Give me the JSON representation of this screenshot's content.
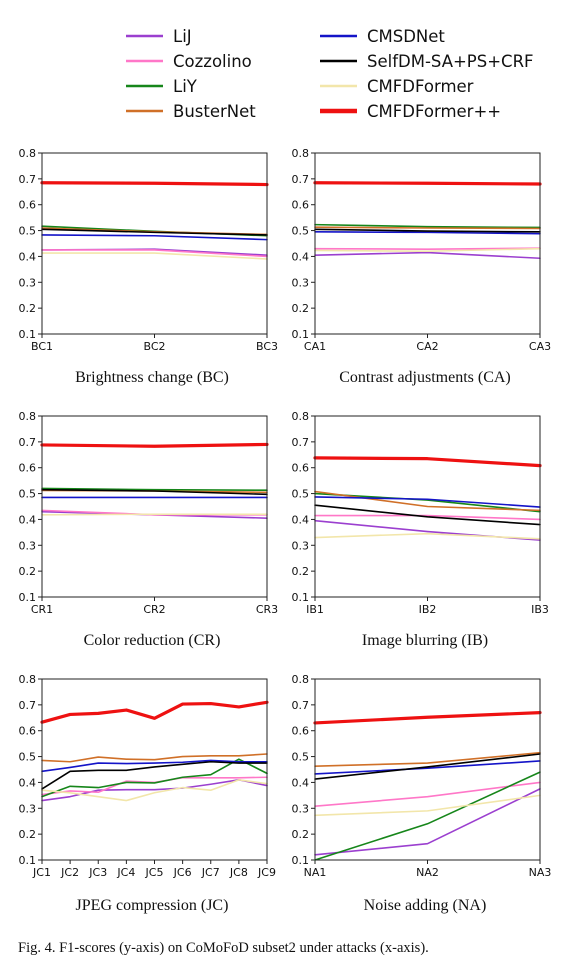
{
  "legend": [
    {
      "name": "LiJ",
      "color": "#9b3fcf",
      "width": 2
    },
    {
      "name": "CMSDNet",
      "color": "#1414c8",
      "width": 2
    },
    {
      "name": "Cozzolino",
      "color": "#ff77c8",
      "width": 2
    },
    {
      "name": "SelfDM-SA+PS+CRF",
      "color": "#000000",
      "width": 2
    },
    {
      "name": "LiY",
      "color": "#16861a",
      "width": 2
    },
    {
      "name": "CMFDFormer",
      "color": "#f2e6aa",
      "width": 2
    },
    {
      "name": "BusterNet",
      "color": "#d07028",
      "width": 2
    },
    {
      "name": "CMFDFormer++",
      "color": "#ee1111",
      "width": 4
    }
  ],
  "figure_caption": "Fig. 4.  F1-scores (y-axis) on CoMoFoD subset2 under attacks (x-axis).",
  "chart_data": [
    {
      "type": "line",
      "caption": "Brightness change (BC)",
      "categories": [
        "BC1",
        "BC2",
        "BC3"
      ],
      "ylim": [
        0.1,
        0.8
      ],
      "yticks": [
        "0.1",
        "0.2",
        "0.3",
        "0.4",
        "0.5",
        "0.6",
        "0.7",
        "0.8"
      ],
      "series": [
        {
          "name": "LiJ",
          "values": [
            0.425,
            0.428,
            0.405
          ]
        },
        {
          "name": "Cozzolino",
          "values": [
            0.425,
            0.425,
            0.4
          ]
        },
        {
          "name": "LiY",
          "values": [
            0.517,
            0.497,
            0.48
          ]
        },
        {
          "name": "BusterNet",
          "values": [
            0.51,
            0.495,
            0.485
          ]
        },
        {
          "name": "CMSDNet",
          "values": [
            0.483,
            0.48,
            0.465
          ]
        },
        {
          "name": "SelfDM-SA+PS+CRF",
          "values": [
            0.505,
            0.493,
            0.483
          ]
        },
        {
          "name": "CMFDFormer",
          "values": [
            0.413,
            0.413,
            0.39
          ]
        },
        {
          "name": "CMFDFormer++",
          "values": [
            0.685,
            0.683,
            0.678
          ]
        }
      ]
    },
    {
      "type": "line",
      "caption": "Contrast adjustments (CA)",
      "categories": [
        "CA1",
        "CA2",
        "CA3"
      ],
      "ylim": [
        0.1,
        0.8
      ],
      "yticks": [
        "0.1",
        "0.2",
        "0.3",
        "0.4",
        "0.5",
        "0.6",
        "0.7",
        "0.8"
      ],
      "series": [
        {
          "name": "LiJ",
          "values": [
            0.405,
            0.415,
            0.393
          ]
        },
        {
          "name": "Cozzolino",
          "values": [
            0.43,
            0.428,
            0.432
          ]
        },
        {
          "name": "LiY",
          "values": [
            0.523,
            0.515,
            0.512
          ]
        },
        {
          "name": "BusterNet",
          "values": [
            0.513,
            0.51,
            0.508
          ]
        },
        {
          "name": "CMSDNet",
          "values": [
            0.495,
            0.493,
            0.488
          ]
        },
        {
          "name": "SelfDM-SA+PS+CRF",
          "values": [
            0.505,
            0.498,
            0.495
          ]
        },
        {
          "name": "CMFDFormer",
          "values": [
            0.423,
            0.42,
            0.43
          ]
        },
        {
          "name": "CMFDFormer++",
          "values": [
            0.685,
            0.683,
            0.68
          ]
        }
      ]
    },
    {
      "type": "line",
      "caption": "Color reduction (CR)",
      "categories": [
        "CR1",
        "CR2",
        "CR3"
      ],
      "ylim": [
        0.1,
        0.8
      ],
      "yticks": [
        "0.1",
        "0.2",
        "0.3",
        "0.4",
        "0.5",
        "0.6",
        "0.7",
        "0.8"
      ],
      "series": [
        {
          "name": "LiJ",
          "values": [
            0.43,
            0.418,
            0.405
          ]
        },
        {
          "name": "Cozzolino",
          "values": [
            0.435,
            0.418,
            0.418
          ]
        },
        {
          "name": "LiY",
          "values": [
            0.52,
            0.515,
            0.513
          ]
        },
        {
          "name": "BusterNet",
          "values": [
            0.512,
            0.51,
            0.505
          ]
        },
        {
          "name": "CMSDNet",
          "values": [
            0.485,
            0.485,
            0.485
          ]
        },
        {
          "name": "SelfDM-SA+PS+CRF",
          "values": [
            0.515,
            0.51,
            0.497
          ]
        },
        {
          "name": "CMFDFormer",
          "values": [
            0.418,
            0.42,
            0.42
          ]
        },
        {
          "name": "CMFDFormer++",
          "values": [
            0.688,
            0.683,
            0.69
          ]
        }
      ]
    },
    {
      "type": "line",
      "caption": "Image blurring (IB)",
      "categories": [
        "IB1",
        "IB2",
        "IB3"
      ],
      "ylim": [
        0.1,
        0.8
      ],
      "yticks": [
        "0.1",
        "0.2",
        "0.3",
        "0.4",
        "0.5",
        "0.6",
        "0.7",
        "0.8"
      ],
      "series": [
        {
          "name": "LiJ",
          "values": [
            0.395,
            0.353,
            0.32
          ]
        },
        {
          "name": "Cozzolino",
          "values": [
            0.415,
            0.415,
            0.4
          ]
        },
        {
          "name": "LiY",
          "values": [
            0.5,
            0.475,
            0.43
          ]
        },
        {
          "name": "BusterNet",
          "values": [
            0.508,
            0.45,
            0.435
          ]
        },
        {
          "name": "CMSDNet",
          "values": [
            0.487,
            0.478,
            0.448
          ]
        },
        {
          "name": "SelfDM-SA+PS+CRF",
          "values": [
            0.455,
            0.41,
            0.38
          ]
        },
        {
          "name": "CMFDFormer",
          "values": [
            0.33,
            0.345,
            0.325
          ]
        },
        {
          "name": "CMFDFormer++",
          "values": [
            0.638,
            0.635,
            0.608
          ]
        }
      ]
    },
    {
      "type": "line",
      "caption": "JPEG compression (JC)",
      "categories": [
        "JC1",
        "JC2",
        "JC3",
        "JC4",
        "JC5",
        "JC6",
        "JC7",
        "JC8",
        "JC9"
      ],
      "ylim": [
        0.1,
        0.8
      ],
      "yticks": [
        "0.1",
        "0.2",
        "0.3",
        "0.4",
        "0.5",
        "0.6",
        "0.7",
        "0.8"
      ],
      "series": [
        {
          "name": "LiJ",
          "values": [
            0.33,
            0.345,
            0.37,
            0.372,
            0.372,
            0.378,
            0.393,
            0.41,
            0.388
          ]
        },
        {
          "name": "Cozzolino",
          "values": [
            0.353,
            0.367,
            0.362,
            0.405,
            0.4,
            0.418,
            0.418,
            0.418,
            0.42
          ]
        },
        {
          "name": "LiY",
          "values": [
            0.345,
            0.385,
            0.38,
            0.4,
            0.398,
            0.42,
            0.43,
            0.49,
            0.435
          ]
        },
        {
          "name": "BusterNet",
          "values": [
            0.485,
            0.48,
            0.498,
            0.49,
            0.488,
            0.5,
            0.503,
            0.503,
            0.51
          ]
        },
        {
          "name": "CMSDNet",
          "values": [
            0.443,
            0.458,
            0.475,
            0.473,
            0.475,
            0.478,
            0.485,
            0.48,
            0.48
          ]
        },
        {
          "name": "SelfDM-SA+PS+CRF",
          "values": [
            0.375,
            0.443,
            0.447,
            0.447,
            0.46,
            0.47,
            0.48,
            0.475,
            0.475
          ]
        },
        {
          "name": "CMFDFormer",
          "values": [
            0.37,
            0.36,
            0.345,
            0.33,
            0.36,
            0.38,
            0.37,
            0.41,
            0.395
          ]
        },
        {
          "name": "CMFDFormer++",
          "values": [
            0.633,
            0.663,
            0.667,
            0.68,
            0.648,
            0.703,
            0.705,
            0.692,
            0.71
          ]
        }
      ]
    },
    {
      "type": "line",
      "caption": "Noise adding (NA)",
      "categories": [
        "NA1",
        "NA2",
        "NA3"
      ],
      "ylim": [
        0.1,
        0.8
      ],
      "yticks": [
        "0.1",
        "0.2",
        "0.3",
        "0.4",
        "0.5",
        "0.6",
        "0.7",
        "0.8"
      ],
      "series": [
        {
          "name": "LiJ",
          "values": [
            0.12,
            0.163,
            0.375
          ]
        },
        {
          "name": "Cozzolino",
          "values": [
            0.308,
            0.345,
            0.4
          ]
        },
        {
          "name": "LiY",
          "values": [
            0.1,
            0.24,
            0.44
          ]
        },
        {
          "name": "BusterNet",
          "values": [
            0.463,
            0.475,
            0.515
          ]
        },
        {
          "name": "CMSDNet",
          "values": [
            0.433,
            0.455,
            0.483
          ]
        },
        {
          "name": "SelfDM-SA+PS+CRF",
          "values": [
            0.413,
            0.46,
            0.51
          ]
        },
        {
          "name": "CMFDFormer",
          "values": [
            0.273,
            0.29,
            0.35
          ]
        },
        {
          "name": "CMFDFormer++",
          "values": [
            0.63,
            0.652,
            0.67
          ]
        }
      ]
    }
  ]
}
